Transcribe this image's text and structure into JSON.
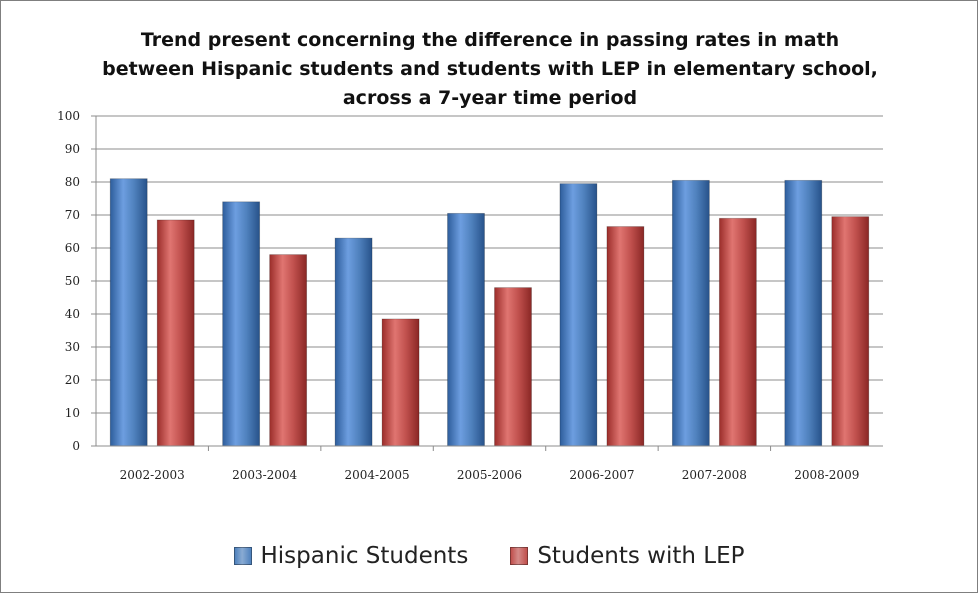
{
  "chart_data": {
    "type": "bar",
    "title": "Trend present concerning the difference in passing rates in math between Hispanic students and students with LEP in elementary school, across a 7-year time period",
    "xlabel": "",
    "ylabel": "",
    "ylim": [
      0,
      100
    ],
    "yticks": [
      0,
      10,
      20,
      30,
      40,
      50,
      60,
      70,
      80,
      90,
      100
    ],
    "grid": true,
    "legend_position": "bottom",
    "categories": [
      "2002-2003",
      "2003-2004",
      "2004-2005",
      "2005-2006",
      "2006-2007",
      "2007-2008",
      "2008-2009"
    ],
    "series": [
      {
        "name": "Hispanic Students",
        "color": "#4f81bd",
        "values": [
          81,
          74,
          63,
          70.5,
          79.5,
          80.5,
          80.5
        ]
      },
      {
        "name": "Students with LEP",
        "color": "#c0504d",
        "values": [
          68.5,
          58,
          38.5,
          48,
          66.5,
          69,
          69.5
        ]
      }
    ]
  }
}
